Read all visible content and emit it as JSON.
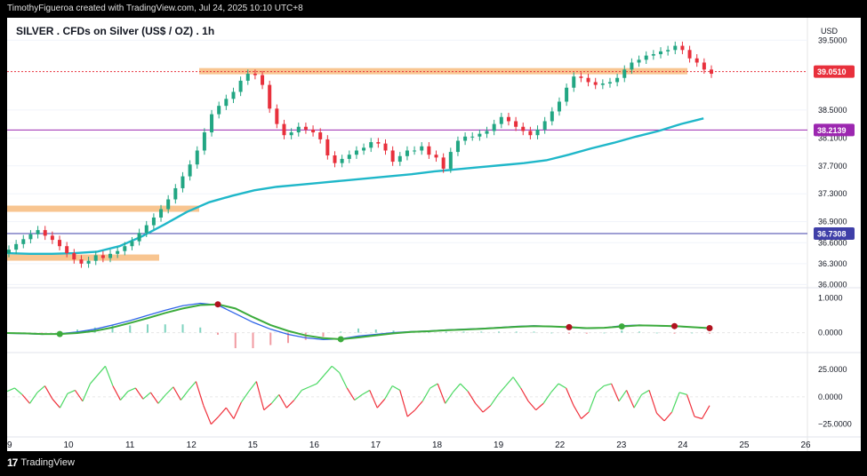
{
  "header": {
    "credit": "TimothyFigueroa created with TradingView.com, Jul 24, 2025 10:10 UTC+8"
  },
  "footer": {
    "logo_text": "TradingView"
  },
  "chart_data": {
    "type": "line",
    "title": "SILVER . CFDs on Silver (US$ / OZ) . 1h",
    "currency_label": "USD",
    "x_tick_labels": [
      "9",
      "10",
      "11",
      "12",
      "15",
      "16",
      "17",
      "18",
      "19",
      "22",
      "23",
      "24",
      "25",
      "26"
    ],
    "price_axis": {
      "ylim": [
        35.98,
        39.72
      ],
      "ticks": [
        39.5,
        38.5,
        38.1,
        37.7,
        37.3,
        36.9,
        36.6,
        36.3,
        36.0
      ],
      "tick_labels": [
        "39.5000",
        "38.5000",
        "38.1000",
        "37.7000",
        "37.3000",
        "36.9000",
        "36.6000",
        "36.3000",
        "36.0000"
      ]
    },
    "price_markers": [
      {
        "value": 39.051,
        "label": "39.0510",
        "color": "#e8303c"
      },
      {
        "value": 38.2139,
        "label": "38.2139",
        "color": "#9c27b0"
      },
      {
        "value": 36.7308,
        "label": "36.7308",
        "color": "#3f3fa8"
      }
    ],
    "candles_close": [
      36.5,
      36.58,
      36.65,
      36.72,
      36.78,
      36.7,
      36.64,
      36.55,
      36.45,
      36.36,
      36.3,
      36.34,
      36.42,
      36.38,
      36.44,
      36.48,
      36.55,
      36.62,
      36.74,
      36.85,
      36.96,
      37.08,
      37.22,
      37.38,
      37.55,
      37.72,
      37.92,
      38.18,
      38.44,
      38.56,
      38.66,
      38.76,
      38.92,
      39.02,
      39.0,
      38.86,
      38.52,
      38.3,
      38.14,
      38.18,
      38.26,
      38.22,
      38.18,
      38.08,
      37.85,
      37.74,
      37.8,
      37.86,
      37.92,
      37.96,
      38.04,
      38.02,
      37.92,
      37.76,
      37.84,
      37.92,
      37.92,
      37.98,
      37.86,
      37.82,
      37.66,
      37.9,
      38.06,
      38.12,
      38.12,
      38.16,
      38.2,
      38.3,
      38.4,
      38.34,
      38.26,
      38.2,
      38.14,
      38.22,
      38.34,
      38.48,
      38.62,
      38.82,
      38.98,
      38.96,
      38.9,
      38.86,
      38.88,
      38.9,
      38.96,
      39.08,
      39.18,
      39.22,
      39.28,
      39.3,
      39.34,
      39.36,
      39.42,
      39.36,
      39.24,
      39.18,
      39.08,
      39.02
    ],
    "overlay_levels": [
      {
        "value": 39.05,
        "x_range": [
          0.24,
          0.85
        ],
        "color": "#f6b26b"
      },
      {
        "value": 37.08,
        "x_range": [
          0.0,
          0.24
        ],
        "color": "#f6b26b"
      },
      {
        "value": 36.38,
        "x_range": [
          0.0,
          0.19
        ],
        "color": "#f6b26b"
      }
    ],
    "moving_average": [
      36.45,
      36.44,
      36.44,
      36.45,
      36.47,
      36.55,
      36.69,
      36.86,
      37.04,
      37.18,
      37.27,
      37.35,
      37.4,
      37.43,
      37.46,
      37.49,
      37.52,
      37.55,
      37.58,
      37.62,
      37.65,
      37.68,
      37.71,
      37.74,
      37.78,
      37.86,
      37.95,
      38.03,
      38.12,
      38.2,
      38.3,
      38.38
    ],
    "oscillator1": {
      "ticks": [
        1.0,
        0.0
      ],
      "tick_labels": [
        "1.0000",
        "0.0000"
      ],
      "ylim": [
        -0.5,
        1.25
      ],
      "macd": [
        -0.02,
        -0.03,
        -0.05,
        -0.03,
        0.02,
        0.1,
        0.22,
        0.35,
        0.5,
        0.65,
        0.78,
        0.85,
        0.8,
        0.55,
        0.3,
        0.1,
        -0.05,
        -0.15,
        -0.2,
        -0.18,
        -0.1,
        -0.05,
        0.0,
        0.03,
        0.05,
        0.08,
        0.1,
        0.12,
        0.15,
        0.18,
        0.2,
        0.18,
        0.15,
        0.12,
        0.14,
        0.2,
        0.22,
        0.2,
        0.18,
        0.16,
        0.12
      ],
      "signal": [
        -0.01,
        -0.02,
        -0.04,
        -0.04,
        -0.01,
        0.05,
        0.15,
        0.28,
        0.42,
        0.57,
        0.7,
        0.8,
        0.82,
        0.7,
        0.45,
        0.22,
        0.05,
        -0.08,
        -0.16,
        -0.19,
        -0.14,
        -0.08,
        -0.02,
        0.02,
        0.04,
        0.07,
        0.09,
        0.11,
        0.14,
        0.17,
        0.19,
        0.18,
        0.16,
        0.13,
        0.14,
        0.18,
        0.21,
        0.2,
        0.19,
        0.16,
        0.13
      ]
    },
    "oscillator2": {
      "ticks": [
        25.0,
        0.0,
        -25.0
      ],
      "tick_labels": [
        "25.0000",
        "0.0000",
        "−25.0000"
      ],
      "ylim": [
        -35,
        38
      ],
      "values": [
        5,
        8,
        2,
        -6,
        4,
        10,
        -2,
        -10,
        3,
        6,
        -4,
        12,
        20,
        28,
        10,
        -3,
        5,
        8,
        -2,
        4,
        -6,
        2,
        9,
        -3,
        6,
        14,
        -8,
        -25,
        -18,
        -10,
        -20,
        -5,
        5,
        14,
        -12,
        -6,
        2,
        -10,
        -3,
        6,
        9,
        12,
        20,
        28,
        22,
        8,
        -3,
        2,
        6,
        -10,
        -2,
        10,
        6,
        -18,
        -12,
        -4,
        8,
        12,
        -6,
        4,
        12,
        5,
        -6,
        -14,
        -8,
        2,
        10,
        18,
        8,
        -4,
        -12,
        -6,
        4,
        12,
        8,
        -8,
        -20,
        -14,
        4,
        10,
        12,
        -4,
        6,
        -10,
        2,
        6,
        -15,
        -22,
        -14,
        4,
        2,
        -18,
        -20,
        -8
      ],
      "positive_color": "#4cd964",
      "negative_color": "#f0313c"
    },
    "colors": {
      "up": "#22a683",
      "down": "#e8303c",
      "ma": "#1fb7c9",
      "macd": "#2f64e8",
      "signal_up": "#3cab3c",
      "signal_down": "#b1131f"
    }
  }
}
